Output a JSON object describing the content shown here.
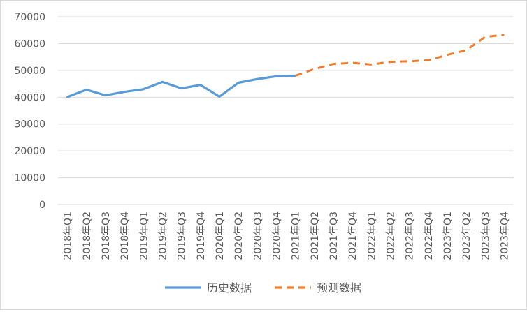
{
  "chart_data": {
    "type": "line",
    "categories": [
      "2018年Q1",
      "2018年Q2",
      "2018年Q3",
      "2018年Q4",
      "2019年Q1",
      "2019年Q2",
      "2019年Q3",
      "2019年Q4",
      "2020年Q1",
      "2020年Q2",
      "2020年Q3",
      "2020年Q4",
      "2021年Q1",
      "2021年Q2",
      "2021年Q3",
      "2021年Q4",
      "2022年Q1",
      "2022年Q2",
      "2022年Q3",
      "2022年Q4",
      "2023年Q1",
      "2023年Q2",
      "2023年Q3",
      "2023年Q4"
    ],
    "series": [
      {
        "name": "历史数据",
        "color": "#5b9bd5",
        "style": "solid",
        "values": [
          40100,
          42800,
          40700,
          42000,
          43000,
          45700,
          43300,
          44600,
          40200,
          45400,
          46800,
          47800,
          48000,
          null,
          null,
          null,
          null,
          null,
          null,
          null,
          null,
          null,
          null,
          null
        ]
      },
      {
        "name": "预测数据",
        "color": "#ed7d31",
        "style": "dashed",
        "values": [
          null,
          null,
          null,
          null,
          null,
          null,
          null,
          null,
          null,
          null,
          null,
          null,
          48000,
          50500,
          52400,
          52800,
          52200,
          53200,
          53400,
          53800,
          55800,
          57500,
          62500,
          63300
        ]
      }
    ],
    "yticks": [
      0,
      10000,
      20000,
      30000,
      40000,
      50000,
      60000,
      70000
    ],
    "ylim": [
      0,
      70000
    ],
    "grid": true,
    "legend": "bottom"
  }
}
